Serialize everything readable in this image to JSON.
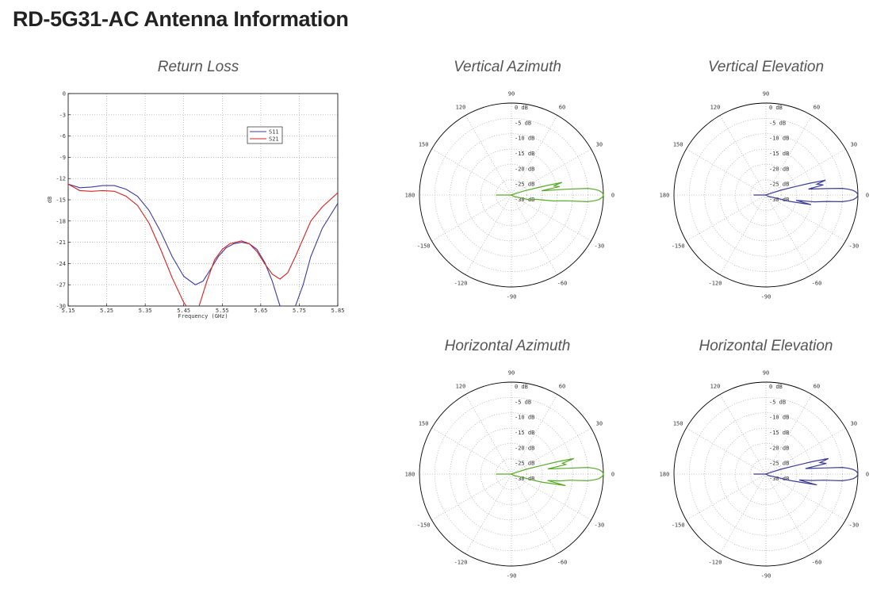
{
  "page": {
    "title": "RD-5G31-AC Antenna Information"
  },
  "colors": {
    "s11": "#3a3aa0",
    "s21": "#d82020",
    "azimuth": "#5aaa2a",
    "elevation": "#3a3a9a",
    "grid": "#999999",
    "axis": "#000000"
  },
  "chart_data": [
    {
      "id": "return_loss",
      "type": "line",
      "title": "Return Loss",
      "xlabel": "Frequency (GHz)",
      "ylabel": "dB",
      "xlim": [
        5.15,
        5.85
      ],
      "ylim": [
        -30,
        0
      ],
      "xticks": [
        "5.15",
        "5.25",
        "5.35",
        "5.45",
        "5.55",
        "5.65",
        "5.75",
        "5.85"
      ],
      "yticks": [
        "0",
        "-3",
        "-6",
        "-9",
        "-12",
        "-15",
        "-18",
        "-21",
        "-24",
        "-27",
        "-30"
      ],
      "grid": true,
      "legend_position": "top-right",
      "series": [
        {
          "name": "S11",
          "color": "#3a3aa0",
          "x": [
            5.15,
            5.18,
            5.21,
            5.24,
            5.27,
            5.3,
            5.33,
            5.36,
            5.39,
            5.42,
            5.45,
            5.48,
            5.5,
            5.52,
            5.54,
            5.56,
            5.58,
            5.6,
            5.62,
            5.64,
            5.66,
            5.68,
            5.7,
            5.72,
            5.73,
            5.74,
            5.76,
            5.78,
            5.81,
            5.85
          ],
          "y": [
            -12.8,
            -13.3,
            -13.2,
            -13.0,
            -13.0,
            -13.5,
            -14.5,
            -16.5,
            -19.5,
            -23.0,
            -25.8,
            -27.0,
            -26.5,
            -24.8,
            -23.0,
            -21.8,
            -21.2,
            -21.0,
            -21.2,
            -22.0,
            -23.8,
            -26.5,
            -30.0,
            -31.0,
            -31.0,
            -30.0,
            -27.0,
            -23.0,
            -19.0,
            -15.5
          ]
        },
        {
          "name": "S21",
          "color": "#d82020",
          "x": [
            5.15,
            5.18,
            5.21,
            5.24,
            5.27,
            5.3,
            5.33,
            5.36,
            5.39,
            5.42,
            5.45,
            5.47,
            5.49,
            5.51,
            5.53,
            5.55,
            5.57,
            5.6,
            5.62,
            5.64,
            5.66,
            5.68,
            5.7,
            5.72,
            5.74,
            5.76,
            5.78,
            5.81,
            5.85
          ],
          "y": [
            -12.8,
            -13.7,
            -13.8,
            -13.7,
            -13.8,
            -14.5,
            -15.8,
            -18.3,
            -22.0,
            -26.0,
            -29.5,
            -31.0,
            -30.0,
            -26.5,
            -23.5,
            -22.0,
            -21.2,
            -20.8,
            -21.2,
            -22.3,
            -24.0,
            -25.5,
            -26.2,
            -25.3,
            -23.0,
            -20.5,
            -18.0,
            -16.0,
            -14.0
          ]
        }
      ]
    },
    {
      "id": "vertical_azimuth",
      "type": "line",
      "title": "Vertical Azimuth",
      "polar": true,
      "angle_labels": [
        "0",
        "30",
        "60",
        "90",
        "120",
        "150",
        "180",
        "-150",
        "-120",
        "-90",
        "-60",
        "-30"
      ],
      "radial_labels": [
        "0 dB",
        "-5 dB",
        "-10 dB",
        "-15 dB",
        "-20 dB",
        "-25 dB",
        "-30 dB"
      ],
      "radial_range_db": [
        -30,
        0
      ],
      "grid": true,
      "series": [
        {
          "color": "#5aaa2a",
          "angle_deg": [
            -180,
            -150,
            -120,
            -90,
            -60,
            -30,
            -20,
            -15,
            -10,
            -8,
            -6,
            -5,
            -4,
            -3,
            -2,
            -1,
            0,
            1,
            2,
            3,
            4,
            5,
            6,
            8,
            10,
            12,
            14,
            15,
            16,
            18,
            20,
            30,
            60,
            90,
            120,
            150,
            180
          ],
          "gain_db": [
            -25,
            -30,
            -30,
            -30,
            -30,
            -29,
            -28,
            -24,
            -22,
            -16,
            -12,
            -5,
            -3,
            -1.5,
            -0.7,
            -0.2,
            0,
            -0.2,
            -0.7,
            -1.5,
            -3,
            -5,
            -12,
            -20,
            -14,
            -16,
            -13,
            -18,
            -22,
            -26,
            -29,
            -30,
            -30,
            -30,
            -30,
            -30,
            -25
          ]
        }
      ]
    },
    {
      "id": "vertical_elevation",
      "type": "line",
      "title": "Vertical Elevation",
      "polar": true,
      "angle_labels": [
        "0",
        "30",
        "60",
        "90",
        "120",
        "150",
        "180",
        "-150",
        "-120",
        "-90",
        "-60",
        "-30"
      ],
      "radial_labels": [
        "0 dB",
        "-5 dB",
        "-10 dB",
        "-15 dB",
        "-20 dB",
        "-25 dB",
        "-30 dB"
      ],
      "radial_range_db": [
        -30,
        0
      ],
      "grid": true,
      "series": [
        {
          "color": "#3a3a9a",
          "angle_deg": [
            -180,
            -150,
            -120,
            -90,
            -60,
            -30,
            -20,
            -15,
            -12,
            -10,
            -8,
            -6,
            -5,
            -4,
            -3,
            -2,
            -1,
            0,
            1,
            2,
            3,
            4,
            5,
            6,
            8,
            10,
            12,
            14,
            15,
            16,
            18,
            20,
            30,
            60,
            90,
            120,
            150,
            180
          ],
          "gain_db": [
            -26,
            -30,
            -30,
            -30,
            -30,
            -29,
            -28,
            -22,
            -15,
            -20,
            -14,
            -10,
            -5,
            -3,
            -1.5,
            -0.7,
            -0.2,
            0,
            -0.2,
            -0.7,
            -1.5,
            -3,
            -5,
            -10,
            -16,
            -11,
            -13,
            -10,
            -15,
            -20,
            -25,
            -29,
            -30,
            -30,
            -30,
            -30,
            -30,
            -26
          ]
        }
      ]
    },
    {
      "id": "horizontal_azimuth",
      "type": "line",
      "title": "Horizontal Azimuth",
      "polar": true,
      "angle_labels": [
        "0",
        "30",
        "60",
        "90",
        "120",
        "150",
        "180",
        "-150",
        "-120",
        "-90",
        "-60",
        "-30"
      ],
      "radial_labels": [
        "0 dB",
        "-5 dB",
        "-10 dB",
        "-15 dB",
        "-20 dB",
        "-25 dB",
        "-30 dB"
      ],
      "radial_range_db": [
        -30,
        0
      ],
      "grid": true,
      "series": [
        {
          "color": "#5aaa2a",
          "angle_deg": [
            -180,
            -150,
            -120,
            -90,
            -60,
            -30,
            -20,
            -15,
            -12,
            -10,
            -8,
            -6,
            -5,
            -4,
            -3,
            -2,
            -1,
            0,
            1,
            2,
            3,
            4,
            5,
            6,
            8,
            10,
            12,
            14,
            15,
            16,
            18,
            20,
            30,
            60,
            90,
            120,
            150,
            180
          ],
          "gain_db": [
            -25,
            -30,
            -30,
            -30,
            -30,
            -29,
            -28,
            -20,
            -12,
            -18,
            -14,
            -11,
            -5,
            -3,
            -1.5,
            -0.7,
            -0.2,
            0,
            -0.2,
            -0.7,
            -1.5,
            -3,
            -5,
            -12,
            -18,
            -12,
            -13,
            -9,
            -14,
            -20,
            -25,
            -29,
            -30,
            -30,
            -30,
            -30,
            -30,
            -25
          ]
        }
      ]
    },
    {
      "id": "horizontal_elevation",
      "type": "line",
      "title": "Horizontal Elevation",
      "polar": true,
      "angle_labels": [
        "0",
        "30",
        "60",
        "90",
        "120",
        "150",
        "180",
        "-150",
        "-120",
        "-90",
        "-60",
        "-30"
      ],
      "radial_labels": [
        "0 dB",
        "-5 dB",
        "-10 dB",
        "-15 dB",
        "-20 dB",
        "-25 dB",
        "-30 dB"
      ],
      "radial_range_db": [
        -30,
        0
      ],
      "grid": true,
      "series": [
        {
          "color": "#3a3a9a",
          "angle_deg": [
            -180,
            -150,
            -120,
            -90,
            -60,
            -30,
            -20,
            -15,
            -12,
            -10,
            -8,
            -6,
            -5,
            -4,
            -3,
            -2,
            -1,
            0,
            1,
            2,
            3,
            4,
            5,
            6,
            8,
            10,
            12,
            14,
            15,
            16,
            18,
            20,
            30,
            60,
            90,
            120,
            150,
            180
          ],
          "gain_db": [
            -26,
            -30,
            -30,
            -30,
            -30,
            -29,
            -28,
            -22,
            -13,
            -19,
            -15,
            -11,
            -5,
            -3,
            -1.5,
            -0.7,
            -0.2,
            0,
            -0.2,
            -0.7,
            -1.5,
            -3,
            -5,
            -11,
            -17,
            -10,
            -12,
            -9,
            -14,
            -20,
            -25,
            -29,
            -30,
            -30,
            -30,
            -30,
            -30,
            -26
          ]
        }
      ]
    }
  ]
}
